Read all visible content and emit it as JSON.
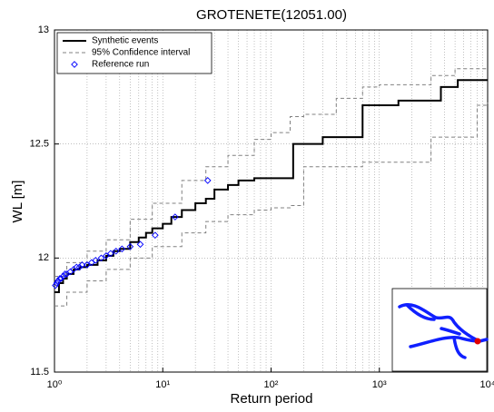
{
  "chart_data": {
    "type": "line",
    "title": "GROTENETE(12051.00)",
    "xlabel": "Return period",
    "ylabel": "WL [m]",
    "xscale": "log",
    "xlim": [
      1,
      10000
    ],
    "ylim": [
      11.5,
      13
    ],
    "xticks": [
      {
        "value": 1,
        "label": "10⁰"
      },
      {
        "value": 10,
        "label": "10¹"
      },
      {
        "value": 100,
        "label": "10²"
      },
      {
        "value": 1000,
        "label": "10³"
      },
      {
        "value": 10000,
        "label": "10⁴"
      }
    ],
    "yticks": [
      11.5,
      12,
      12.5,
      13
    ],
    "grid": true,
    "legend": "upper left",
    "series": [
      {
        "name": "Synthetic events",
        "color": "#000000",
        "style": "solid",
        "drawstyle": "steps-post",
        "x": [
          1,
          1.1,
          1.2,
          1.3,
          1.5,
          1.7,
          2,
          2.5,
          3,
          3.5,
          4,
          5,
          6,
          7,
          8,
          10,
          12,
          15,
          20,
          25,
          30,
          40,
          50,
          70,
          100,
          160,
          300,
          700,
          1500,
          3700,
          5300,
          10000
        ],
        "values": [
          11.85,
          11.89,
          11.91,
          11.93,
          11.95,
          11.96,
          11.97,
          11.99,
          12.01,
          12.03,
          12.04,
          12.07,
          12.09,
          12.11,
          12.13,
          12.15,
          12.18,
          12.21,
          12.24,
          12.26,
          12.3,
          12.32,
          12.34,
          12.35,
          12.35,
          12.5,
          12.53,
          12.67,
          12.69,
          12.75,
          12.78,
          12.78
        ]
      },
      {
        "name": "95% Confidence interval",
        "color": "#808080",
        "style": "dashed",
        "drawstyle": "steps-post",
        "x": [
          1,
          1.3,
          2,
          3,
          5,
          8,
          15,
          25,
          40,
          70,
          100,
          150,
          200,
          400,
          700,
          1000,
          3000,
          5000,
          10000
        ],
        "values": [
          11.92,
          11.98,
          12.03,
          12.08,
          12.17,
          12.24,
          12.34,
          12.4,
          12.45,
          12.52,
          12.55,
          12.62,
          12.63,
          12.7,
          12.75,
          12.76,
          12.8,
          12.83,
          12.83
        ]
      },
      {
        "color": "#808080",
        "style": "dashed",
        "drawstyle": "steps-post",
        "x": [
          1,
          1.3,
          2,
          3,
          5,
          8,
          15,
          25,
          40,
          70,
          100,
          150,
          200,
          500,
          700,
          1500,
          3000,
          8000,
          10000
        ],
        "values": [
          11.79,
          11.85,
          11.9,
          11.95,
          12,
          12.05,
          12.11,
          12.16,
          12.19,
          12.21,
          12.22,
          12.23,
          12.4,
          12.4,
          12.42,
          12.42,
          12.53,
          12.67,
          12.68
        ]
      },
      {
        "name": "Reference run",
        "color": "#0000ff",
        "style": "markers",
        "x": [
          1.02,
          1.05,
          1.08,
          1.12,
          1.15,
          1.2,
          1.25,
          1.3,
          1.4,
          1.5,
          1.6,
          1.7,
          1.8,
          2,
          2.2,
          2.4,
          2.7,
          3,
          3.3,
          3.7,
          4.2,
          5,
          6.2,
          8.5,
          13,
          26
        ],
        "values": [
          11.88,
          11.89,
          11.9,
          11.91,
          11.91,
          11.92,
          11.93,
          11.93,
          11.94,
          11.95,
          11.96,
          11.96,
          11.97,
          11.97,
          11.98,
          11.99,
          12,
          12.01,
          12.02,
          12.03,
          12.04,
          12.05,
          12.06,
          12.1,
          12.18,
          12.34
        ]
      }
    ]
  }
}
